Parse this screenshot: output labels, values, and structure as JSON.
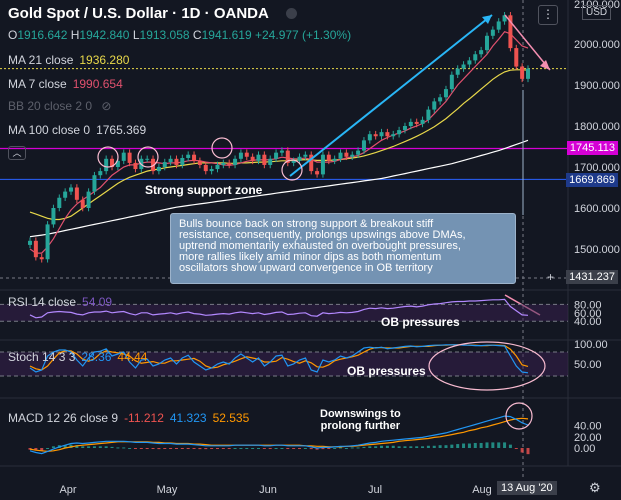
{
  "header": {
    "title": "Gold Spot / U.S. Dollar · 1D · OANDA",
    "ohlc": [
      {
        "k": "O",
        "v": "1916.642"
      },
      {
        "k": "H",
        "v": "1942.840"
      },
      {
        "k": "L",
        "v": "1913.058"
      },
      {
        "k": "C",
        "v": "1941.619"
      },
      {
        "k": "",
        "v": "+24.977 (+1.30%)"
      }
    ]
  },
  "currency_badge": "USD",
  "indicators": {
    "ma21": {
      "label": "MA 21 close",
      "value": "1936.280",
      "color": "#e8d84a"
    },
    "ma7": {
      "label": "MA 7 close",
      "value": "1990.654",
      "color": "#e0516e"
    },
    "bb": {
      "label": "BB 20 close 2 0"
    },
    "ma100": {
      "label": "MA 100 close 0",
      "value": "1765.369",
      "color": "#ffffff"
    }
  },
  "price_tags": [
    {
      "value": "1745.113",
      "color": "#d500d5"
    },
    {
      "value": "1669.869",
      "color": "#1e3a8a"
    },
    {
      "value": "1431.237",
      "color": "#3b3f4a"
    }
  ],
  "annotations": {
    "support": "Strong support zone",
    "box_lines": [
      "Bulls bounce back on strong support & breakout stiff",
      "resistance, consequently, prolongs upswings above DMAs,",
      "uptrend momentarily exhausted on overbought pressures,",
      "more rallies likely amid minor dips as both momentum",
      "oscillators show upward convergence in OB territory"
    ],
    "rsi_ob": "OB pressures",
    "stoch_ob": "OB pressures",
    "macd_note": [
      "Downswings to",
      "prolong further"
    ]
  },
  "rsi": {
    "label": "RSI 14 close",
    "value": "54.09"
  },
  "stoch": {
    "label": "Stoch 14 3 3",
    "k": "28.36",
    "d": "44.44"
  },
  "macd": {
    "label": "MACD 12 26 close 9",
    "hist": "-11.212",
    "macd": "41.323",
    "signal": "52.535"
  },
  "date_badge": "13 Aug '20",
  "chart_data": {
    "type": "candlestick",
    "title": "Gold Spot / U.S. Dollar · 1D · OANDA",
    "x_ticks": [
      "Apr",
      "May",
      "Jun",
      "Jul",
      "Aug"
    ],
    "price_axis_ticks": [
      2000,
      1900,
      1800,
      1700,
      1600,
      1500
    ],
    "price_axis_top_partial": "2100.000",
    "rsi_ticks": [
      80,
      60,
      40
    ],
    "stoch_ticks": [
      100,
      50
    ],
    "macd_ticks": [
      40,
      20,
      0
    ],
    "levels": {
      "resistance": 1745.113,
      "support": 1669.869,
      "dotted_level": 1940
    },
    "series": {
      "close": [
        1520,
        1480,
        1475,
        1560,
        1600,
        1625,
        1640,
        1650,
        1620,
        1600,
        1640,
        1680,
        1690,
        1720,
        1700,
        1715,
        1735,
        1710,
        1695,
        1720,
        1720,
        1690,
        1700,
        1712,
        1720,
        1705,
        1722,
        1730,
        1715,
        1705,
        1690,
        1695,
        1705,
        1710,
        1705,
        1720,
        1735,
        1725,
        1715,
        1730,
        1705,
        1720,
        1735,
        1740,
        1710,
        1715,
        1725,
        1730,
        1690,
        1682,
        1730,
        1715,
        1720,
        1735,
        1725,
        1730,
        1740,
        1765,
        1780,
        1775,
        1785,
        1775,
        1780,
        1790,
        1800,
        1810,
        1805,
        1815,
        1840,
        1860,
        1870,
        1890,
        1925,
        1940,
        1950,
        1960,
        1975,
        1985,
        2020,
        2035,
        2055,
        2070,
        1990,
        1945,
        1915,
        1940
      ],
      "ma7": [
        1500,
        1490,
        1490,
        1505,
        1525,
        1550,
        1575,
        1595,
        1610,
        1620,
        1630,
        1640,
        1650,
        1665,
        1680,
        1690,
        1700,
        1705,
        1705,
        1710,
        1712,
        1712,
        1710,
        1708,
        1710,
        1710,
        1712,
        1715,
        1716,
        1715,
        1712,
        1710,
        1708,
        1705,
        1704,
        1706,
        1710,
        1714,
        1716,
        1718,
        1717,
        1718,
        1720,
        1724,
        1722,
        1720,
        1720,
        1722,
        1718,
        1712,
        1712,
        1712,
        1714,
        1718,
        1722,
        1725,
        1728,
        1735,
        1745,
        1755,
        1765,
        1772,
        1778,
        1783,
        1788,
        1795,
        1800,
        1806,
        1815,
        1830,
        1845,
        1860,
        1880,
        1900,
        1915,
        1930,
        1945,
        1960,
        1975,
        1995,
        2012,
        2030,
        2025,
        2010,
        1995,
        1990
      ],
      "ma21": [
        1590,
        1585,
        1580,
        1575,
        1572,
        1572,
        1575,
        1580,
        1590,
        1600,
        1610,
        1620,
        1630,
        1640,
        1650,
        1660,
        1668,
        1675,
        1680,
        1685,
        1690,
        1693,
        1695,
        1698,
        1700,
        1702,
        1704,
        1706,
        1708,
        1710,
        1710,
        1710,
        1710,
        1710,
        1709,
        1709,
        1710,
        1710,
        1711,
        1712,
        1712,
        1713,
        1714,
        1715,
        1715,
        1716,
        1717,
        1718,
        1717,
        1716,
        1716,
        1716,
        1717,
        1718,
        1720,
        1722,
        1724,
        1727,
        1731,
        1735,
        1740,
        1745,
        1750,
        1756,
        1762,
        1768,
        1775,
        1782,
        1790,
        1798,
        1808,
        1818,
        1830,
        1842,
        1855,
        1866,
        1878,
        1890,
        1902,
        1914,
        1924,
        1932,
        1936,
        1937,
        1937,
        1936
      ],
      "ma100": [
        1530,
        1532,
        1534,
        1536,
        1539,
        1542,
        1545,
        1548,
        1551,
        1554,
        1557,
        1560,
        1563,
        1566,
        1569,
        1572,
        1575,
        1578,
        1581,
        1584,
        1587,
        1590,
        1593,
        1596,
        1599,
        1602,
        1604,
        1606,
        1608,
        1610,
        1612,
        1614,
        1616,
        1618,
        1620,
        1622,
        1624,
        1626,
        1628,
        1630,
        1632,
        1634,
        1636,
        1638,
        1640,
        1642,
        1644,
        1646,
        1648,
        1650,
        1652,
        1654,
        1656,
        1658,
        1660,
        1662,
        1664,
        1666,
        1668,
        1670,
        1672,
        1675,
        1678,
        1681,
        1684,
        1687,
        1690,
        1693,
        1696,
        1699,
        1702,
        1705,
        1708,
        1712,
        1716,
        1720,
        1724,
        1728,
        1732,
        1736,
        1740,
        1745,
        1750,
        1755,
        1760,
        1765
      ],
      "rsi": [
        55,
        48,
        50,
        60,
        62,
        63,
        62,
        61,
        57,
        55,
        60,
        62,
        62,
        64,
        60,
        62,
        63,
        58,
        55,
        60,
        60,
        55,
        57,
        58,
        60,
        57,
        60,
        62,
        58,
        57,
        54,
        55,
        57,
        58,
        57,
        60,
        62,
        60,
        58,
        60,
        56,
        58,
        61,
        62,
        56,
        57,
        59,
        60,
        53,
        52,
        60,
        58,
        59,
        61,
        60,
        61,
        63,
        68,
        71,
        70,
        72,
        70,
        71,
        73,
        75,
        76,
        74,
        76,
        79,
        81,
        82,
        84,
        86,
        87,
        87,
        88,
        88,
        89,
        90,
        91,
        91,
        92,
        75,
        65,
        55,
        54
      ],
      "stoch_k": [
        40,
        30,
        35,
        70,
        80,
        85,
        85,
        80,
        60,
        45,
        65,
        80,
        82,
        88,
        70,
        75,
        80,
        55,
        40,
        60,
        62,
        45,
        50,
        60,
        65,
        50,
        65,
        72,
        55,
        45,
        35,
        40,
        50,
        55,
        50,
        65,
        75,
        65,
        55,
        65,
        45,
        55,
        70,
        72,
        45,
        50,
        60,
        65,
        35,
        30,
        60,
        55,
        60,
        70,
        65,
        70,
        80,
        90,
        92,
        90,
        92,
        88,
        90,
        92,
        94,
        95,
        93,
        94,
        96,
        97,
        97,
        98,
        98,
        98,
        97,
        97,
        96,
        96,
        97,
        97,
        96,
        95,
        70,
        45,
        30,
        28
      ],
      "stoch_d": [
        45,
        38,
        35,
        45,
        62,
        78,
        83,
        83,
        75,
        62,
        57,
        63,
        76,
        83,
        80,
        78,
        75,
        70,
        58,
        52,
        54,
        56,
        52,
        52,
        58,
        58,
        60,
        62,
        64,
        57,
        45,
        40,
        42,
        48,
        52,
        57,
        63,
        68,
        65,
        62,
        55,
        55,
        57,
        66,
        62,
        56,
        52,
        58,
        53,
        43,
        42,
        48,
        58,
        62,
        65,
        68,
        72,
        80,
        87,
        91,
        91,
        90,
        90,
        90,
        92,
        94,
        94,
        94,
        94,
        96,
        97,
        97,
        98,
        98,
        98,
        97,
        97,
        96,
        96,
        97,
        97,
        96,
        87,
        70,
        48,
        44
      ],
      "macd": [
        -5,
        -8,
        -10,
        -6,
        -2,
        2,
        5,
        8,
        9,
        8,
        9,
        10,
        11,
        12,
        12,
        12,
        12,
        11,
        10,
        10,
        10,
        9,
        8,
        8,
        8,
        7,
        7,
        7,
        6,
        5,
        4,
        4,
        4,
        4,
        4,
        5,
        5,
        5,
        5,
        5,
        4,
        4,
        5,
        5,
        4,
        4,
        4,
        4,
        2,
        0,
        1,
        1,
        2,
        3,
        3,
        4,
        5,
        7,
        9,
        10,
        12,
        13,
        14,
        15,
        16,
        17,
        18,
        19,
        21,
        23,
        25,
        27,
        30,
        33,
        36,
        39,
        42,
        45,
        48,
        51,
        54,
        57,
        56,
        51,
        45,
        41
      ],
      "signal": [
        -2,
        -4,
        -5,
        -6,
        -5,
        -3,
        0,
        2,
        4,
        5,
        6,
        7,
        8,
        9,
        10,
        11,
        11,
        11,
        11,
        11,
        11,
        10,
        10,
        9,
        9,
        8,
        8,
        8,
        7,
        7,
        6,
        5,
        5,
        5,
        5,
        5,
        5,
        5,
        5,
        5,
        5,
        5,
        5,
        5,
        5,
        5,
        5,
        4,
        4,
        3,
        3,
        2,
        2,
        2,
        3,
        3,
        4,
        5,
        6,
        7,
        8,
        9,
        10,
        12,
        13,
        14,
        15,
        16,
        17,
        19,
        20,
        22,
        24,
        26,
        28,
        31,
        33,
        36,
        38,
        41,
        44,
        47,
        50,
        52,
        53,
        52
      ],
      "hist": [
        -3,
        -4,
        -5,
        0,
        3,
        5,
        5,
        6,
        5,
        3,
        3,
        3,
        3,
        3,
        2,
        1,
        1,
        0,
        -1,
        -1,
        -1,
        -1,
        -2,
        -1,
        -1,
        -1,
        -1,
        -1,
        -1,
        -2,
        -2,
        -1,
        -1,
        -1,
        -1,
        0,
        0,
        0,
        0,
        0,
        -1,
        -1,
        0,
        0,
        -1,
        -1,
        -1,
        0,
        -2,
        -3,
        -2,
        -1,
        0,
        1,
        0,
        1,
        1,
        2,
        3,
        3,
        4,
        4,
        4,
        3,
        3,
        3,
        3,
        3,
        4,
        4,
        5,
        5,
        6,
        7,
        8,
        8,
        9,
        9,
        10,
        10,
        10,
        10,
        6,
        -1,
        -8,
        -11
      ]
    }
  }
}
